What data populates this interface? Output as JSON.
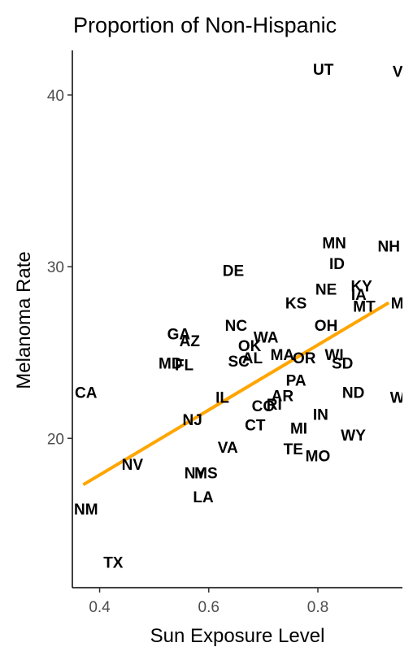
{
  "chart_data": {
    "type": "scatter",
    "title": "Proportion of Non-Hispanic",
    "xlabel": "Sun Exposure Level",
    "ylabel": "Melanoma Rate",
    "xlim": [
      0.35,
      0.955
    ],
    "ylim": [
      11.3,
      42.6
    ],
    "x_ticks": [
      "0.4",
      "0.6",
      "0.8"
    ],
    "y_ticks": [
      "20",
      "30",
      "40"
    ],
    "grid": false,
    "trend_line": {
      "color": "#FFA500",
      "x": [
        0.37,
        0.93
      ],
      "y": [
        17.3,
        27.9
      ]
    },
    "points": [
      {
        "label": "UT",
        "x": 0.81,
        "y": 41.5
      },
      {
        "label": "VT",
        "x": 0.955,
        "y": 41.4
      },
      {
        "label": "MN",
        "x": 0.83,
        "y": 31.4
      },
      {
        "label": "NH",
        "x": 0.93,
        "y": 31.2
      },
      {
        "label": "ID",
        "x": 0.835,
        "y": 30.2
      },
      {
        "label": "DE",
        "x": 0.645,
        "y": 29.8
      },
      {
        "label": "KY",
        "x": 0.88,
        "y": 28.9
      },
      {
        "label": "NE",
        "x": 0.815,
        "y": 28.7
      },
      {
        "label": "IA",
        "x": 0.875,
        "y": 28.4
      },
      {
        "label": "ME",
        "x": 0.955,
        "y": 27.9
      },
      {
        "label": "MT",
        "x": 0.885,
        "y": 27.7
      },
      {
        "label": "KS",
        "x": 0.76,
        "y": 27.9
      },
      {
        "label": "NC",
        "x": 0.65,
        "y": 26.6
      },
      {
        "label": "OH",
        "x": 0.815,
        "y": 26.6
      },
      {
        "label": "GA",
        "x": 0.545,
        "y": 26.1
      },
      {
        "label": "WA",
        "x": 0.705,
        "y": 25.9
      },
      {
        "label": "AZ",
        "x": 0.565,
        "y": 25.7
      },
      {
        "label": "OK",
        "x": 0.675,
        "y": 25.4
      },
      {
        "label": "WI",
        "x": 0.83,
        "y": 24.9
      },
      {
        "label": "MA",
        "x": 0.735,
        "y": 24.9
      },
      {
        "label": "OR",
        "x": 0.775,
        "y": 24.7
      },
      {
        "label": "AL",
        "x": 0.68,
        "y": 24.7
      },
      {
        "label": "SD",
        "x": 0.845,
        "y": 24.4
      },
      {
        "label": "SC",
        "x": 0.655,
        "y": 24.5
      },
      {
        "label": "MD",
        "x": 0.53,
        "y": 24.4
      },
      {
        "label": "FL",
        "x": 0.555,
        "y": 24.3
      },
      {
        "label": "PA",
        "x": 0.76,
        "y": 23.4
      },
      {
        "label": "CA",
        "x": 0.375,
        "y": 22.7
      },
      {
        "label": "ND",
        "x": 0.865,
        "y": 22.7
      },
      {
        "label": "AR",
        "x": 0.735,
        "y": 22.5
      },
      {
        "label": "WV",
        "x": 0.955,
        "y": 22.4
      },
      {
        "label": "IL",
        "x": 0.625,
        "y": 22.4
      },
      {
        "label": "RI",
        "x": 0.72,
        "y": 22.0
      },
      {
        "label": "CO",
        "x": 0.7,
        "y": 21.9
      },
      {
        "label": "IN",
        "x": 0.805,
        "y": 21.4
      },
      {
        "label": "NJ",
        "x": 0.57,
        "y": 21.1
      },
      {
        "label": "CT",
        "x": 0.685,
        "y": 20.8
      },
      {
        "label": "MI",
        "x": 0.765,
        "y": 20.6
      },
      {
        "label": "WY",
        "x": 0.865,
        "y": 20.2
      },
      {
        "label": "VA",
        "x": 0.635,
        "y": 19.5
      },
      {
        "label": "TE",
        "x": 0.755,
        "y": 19.4
      },
      {
        "label": "MO",
        "x": 0.8,
        "y": 19.0
      },
      {
        "label": "NV",
        "x": 0.46,
        "y": 18.5
      },
      {
        "label": "NY",
        "x": 0.575,
        "y": 18.0
      },
      {
        "label": "MS",
        "x": 0.595,
        "y": 18.0
      },
      {
        "label": "LA",
        "x": 0.59,
        "y": 16.6
      },
      {
        "label": "NM",
        "x": 0.375,
        "y": 15.9
      },
      {
        "label": "TX",
        "x": 0.425,
        "y": 12.8
      }
    ]
  }
}
